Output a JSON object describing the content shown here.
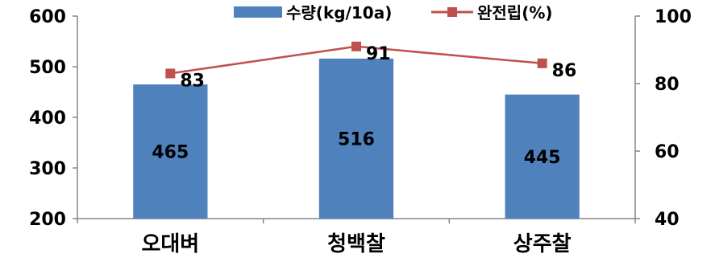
{
  "chart_data": {
    "type": "bar",
    "categories": [
      "오대벼",
      "청백찰",
      "상주찰"
    ],
    "series": [
      {
        "name": "수량(kg/10a)",
        "type": "bar",
        "axis": "left",
        "color": "#4f81bd",
        "values": [
          465,
          516,
          445
        ]
      },
      {
        "name": "완전립(%)",
        "type": "line",
        "axis": "right",
        "color": "#c0504d",
        "values": [
          83,
          91,
          86
        ]
      }
    ],
    "y_left": {
      "range": [
        200,
        600
      ],
      "ticks": [
        "600",
        "500",
        "400",
        "300",
        "200"
      ]
    },
    "y_right": {
      "range": [
        40,
        100
      ],
      "ticks": [
        "100",
        "80",
        "60",
        "40"
      ]
    },
    "legend": "top-right",
    "grid": false,
    "title": "",
    "xlabel": "",
    "ylabel": ""
  }
}
